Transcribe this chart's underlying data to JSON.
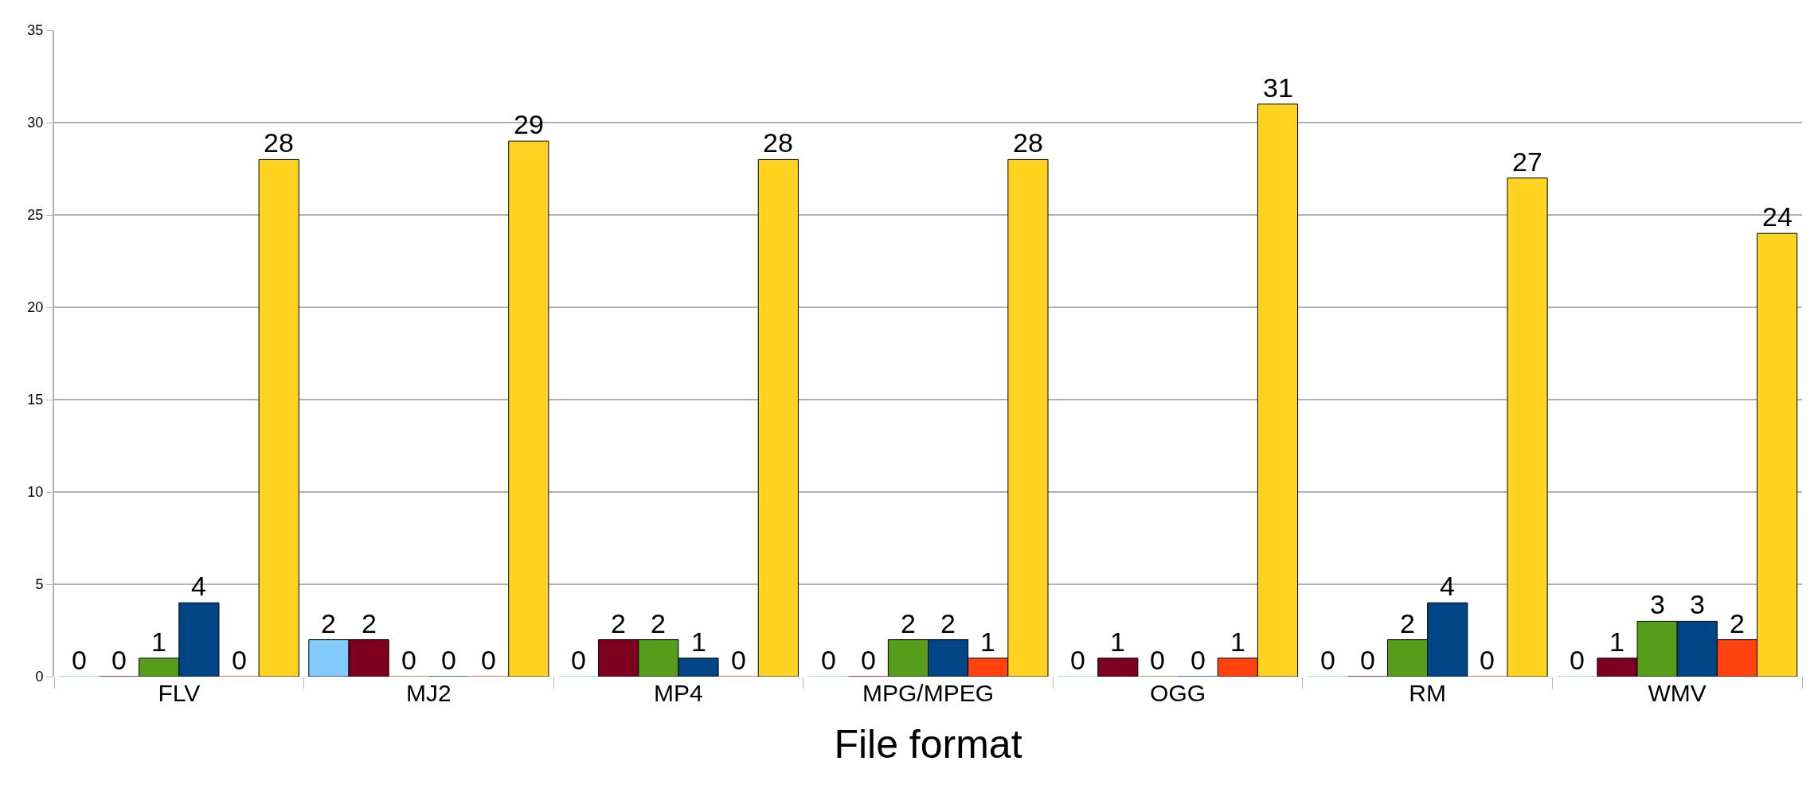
{
  "chart_data": {
    "type": "bar",
    "xlabel": "File format",
    "categories": [
      "FLV",
      "MJ2",
      "MP4",
      "MPG/MPEG",
      "OGG",
      "RM",
      "WMV"
    ],
    "series": [
      {
        "color": "#83caff",
        "values": [
          0,
          2,
          0,
          0,
          0,
          0,
          0
        ]
      },
      {
        "color": "#7e0021",
        "values": [
          0,
          2,
          2,
          0,
          1,
          0,
          1
        ]
      },
      {
        "color": "#579d1c",
        "values": [
          1,
          0,
          2,
          2,
          0,
          2,
          3
        ]
      },
      {
        "color": "#004586",
        "values": [
          4,
          0,
          1,
          2,
          0,
          4,
          3
        ]
      },
      {
        "color": "#ff420e",
        "values": [
          0,
          0,
          0,
          1,
          1,
          0,
          2
        ]
      },
      {
        "color": "#ffd320",
        "values": [
          28,
          29,
          28,
          28,
          31,
          27,
          24
        ]
      }
    ],
    "ylim": [
      0,
      35
    ],
    "yticks": [
      0,
      5,
      10,
      15,
      20,
      25,
      30,
      35
    ],
    "grid": "y",
    "data_labels": true
  }
}
